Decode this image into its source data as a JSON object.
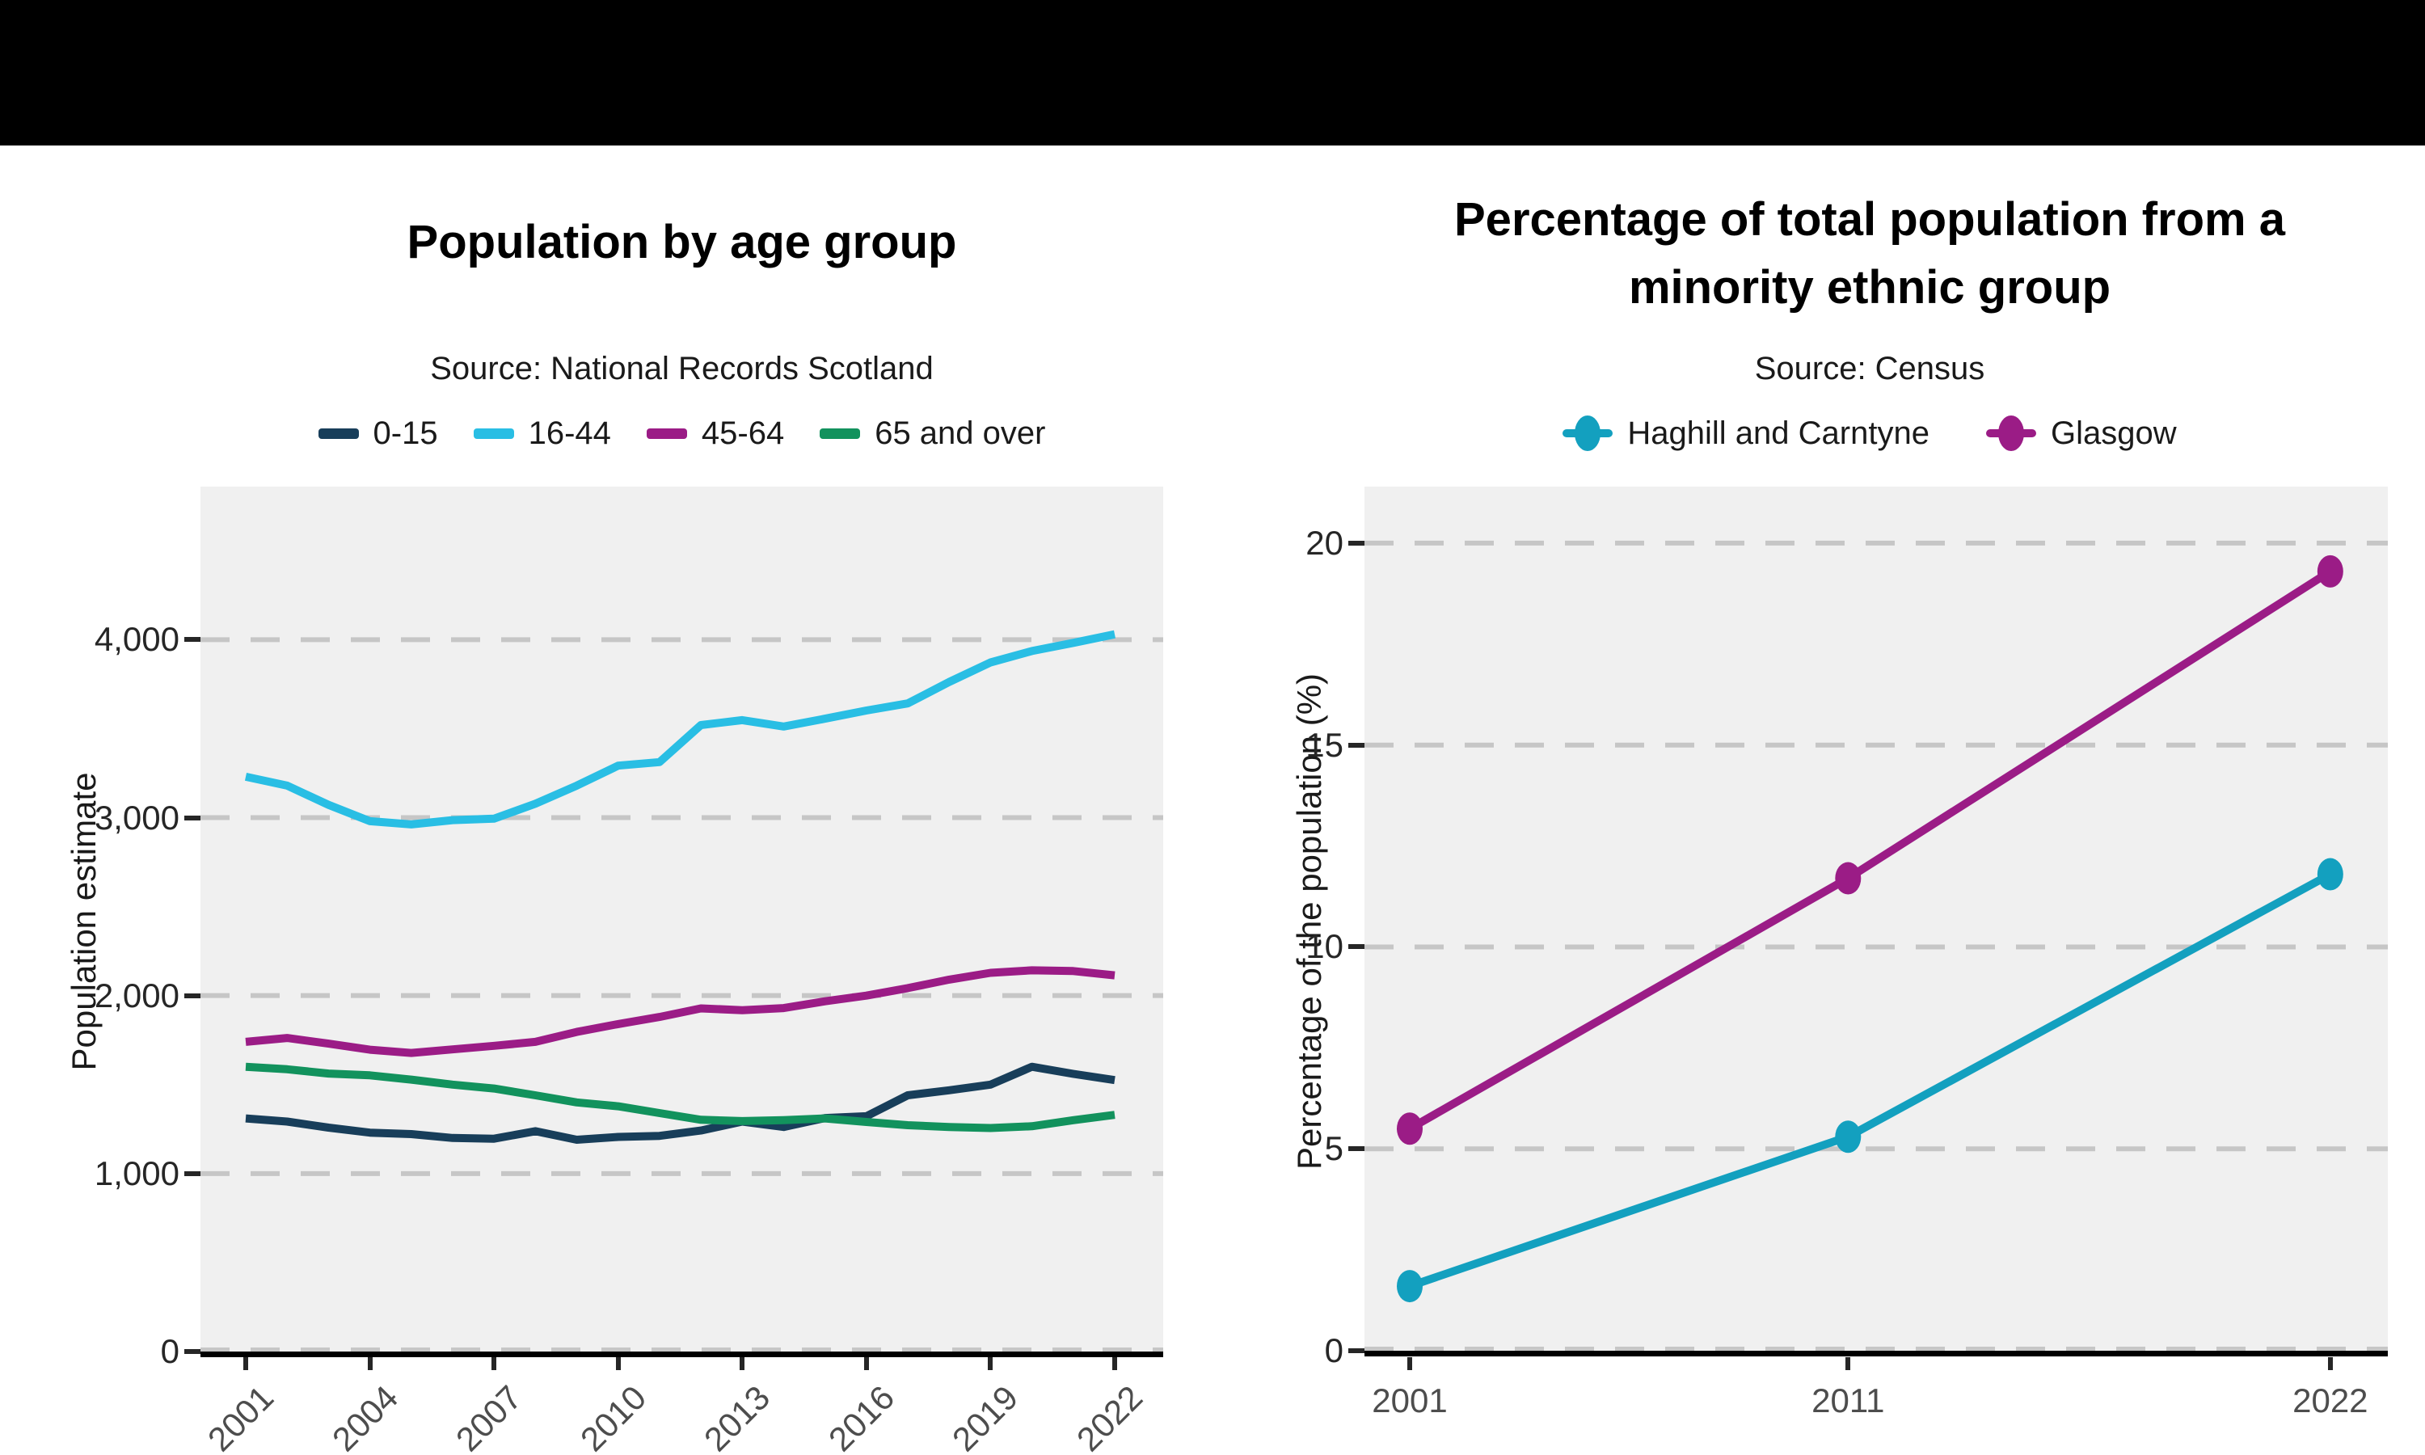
{
  "top_bar": {
    "color": "#000000"
  },
  "chart_data": [
    {
      "type": "line",
      "title": "Population by age group",
      "subtitle": "Source: National Records Scotland",
      "xlabel": "",
      "ylabel": "Population estimate",
      "x": [
        2001,
        2002,
        2003,
        2004,
        2005,
        2006,
        2007,
        2008,
        2009,
        2010,
        2011,
        2012,
        2013,
        2014,
        2015,
        2016,
        2017,
        2018,
        2019,
        2020,
        2021,
        2022
      ],
      "x_tick_labels": [
        "2001",
        "2004",
        "2007",
        "2010",
        "2013",
        "2016",
        "2019",
        "2022"
      ],
      "x_tick_years": [
        2001,
        2004,
        2007,
        2010,
        2013,
        2016,
        2019,
        2022
      ],
      "y_tick_values": [
        0,
        1000,
        2000,
        3000,
        4000
      ],
      "y_tick_labels": [
        "0",
        "1,000",
        "2,000",
        "3,000",
        "4,000"
      ],
      "ylim": [
        0,
        4860
      ],
      "grid": "horizontal-dashed",
      "legend_position": "top",
      "panel_color": "#f0f0f0",
      "grid_color": "#c6c6c6",
      "series": [
        {
          "name": "0-15",
          "color": "#183E5A",
          "values": [
            1310,
            1292,
            1258,
            1230,
            1222,
            1200,
            1196,
            1238,
            1190,
            1206,
            1212,
            1242,
            1292,
            1262,
            1312,
            1322,
            1440,
            1468,
            1500,
            1600,
            1560,
            1525
          ]
        },
        {
          "name": "16-44",
          "color": "#29BEE4",
          "values": [
            3230,
            3180,
            3072,
            2980,
            2962,
            2986,
            2994,
            3078,
            3180,
            3292,
            3312,
            3520,
            3548,
            3512,
            3556,
            3602,
            3642,
            3762,
            3872,
            3936,
            3982,
            4030
          ]
        },
        {
          "name": "45-64",
          "color": "#9B1C86",
          "values": [
            1740,
            1762,
            1730,
            1696,
            1678,
            1698,
            1718,
            1740,
            1796,
            1840,
            1880,
            1928,
            1918,
            1930,
            1968,
            2000,
            2042,
            2090,
            2128,
            2142,
            2138,
            2114
          ]
        },
        {
          "name": "65 and over",
          "color": "#12925D",
          "values": [
            1600,
            1586,
            1562,
            1552,
            1528,
            1500,
            1478,
            1440,
            1400,
            1378,
            1340,
            1302,
            1295,
            1300,
            1310,
            1290,
            1272,
            1262,
            1256,
            1266,
            1300,
            1330
          ]
        }
      ]
    },
    {
      "type": "line",
      "title": "Percentage of total population from a minority ethnic group",
      "title_lines": [
        "Percentage of total population from a",
        "minority ethnic group"
      ],
      "subtitle": "Source: Census",
      "xlabel": "",
      "ylabel": "Percentage of the population (%)",
      "x": [
        2001,
        2011,
        2022
      ],
      "x_tick_labels": [
        "2001",
        "2011",
        "2022"
      ],
      "x_tick_years": [
        2001,
        2011,
        2022
      ],
      "y_tick_values": [
        0,
        5,
        10,
        15,
        20
      ],
      "y_tick_labels": [
        "0",
        "5",
        "10",
        "15",
        "20"
      ],
      "ylim": [
        0,
        21.4
      ],
      "grid": "horizontal-dashed",
      "legend_position": "top",
      "markers": true,
      "panel_color": "#f0f0f0",
      "grid_color": "#c6c6c6",
      "series": [
        {
          "name": "Haghill and Carntyne",
          "color": "#13A0BF",
          "values": [
            1.6,
            5.3,
            11.8
          ]
        },
        {
          "name": "Glasgow",
          "color": "#9B1C86",
          "values": [
            5.5,
            11.7,
            19.3
          ]
        }
      ]
    }
  ]
}
